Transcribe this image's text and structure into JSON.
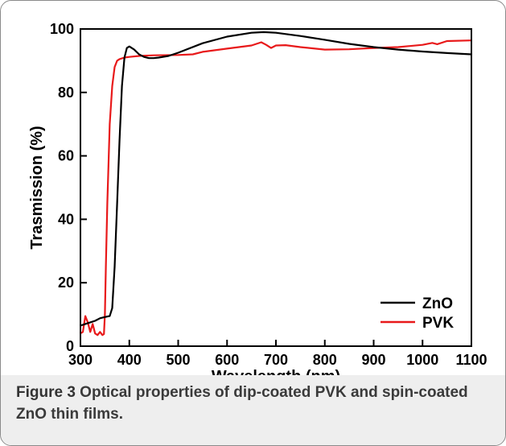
{
  "figure": {
    "label": "Figure 3",
    "caption": " Optical properties of dip-coated PVK and spin-coated ZnO thin films."
  },
  "chart_data": {
    "type": "line",
    "xlabel": "Wavelength (nm)",
    "ylabel": "Trasmission (%)",
    "xlim": [
      300,
      1100
    ],
    "ylim": [
      0,
      100
    ],
    "xticks": [
      300,
      400,
      500,
      600,
      700,
      800,
      900,
      1000,
      1100
    ],
    "yticks": [
      0,
      20,
      40,
      60,
      80,
      100
    ],
    "grid": false,
    "legend_position": "bottom-right",
    "series": [
      {
        "name": "ZnO",
        "color": "#000000",
        "x": [
          300,
          310,
          320,
          330,
          340,
          350,
          360,
          365,
          370,
          375,
          380,
          385,
          390,
          395,
          400,
          410,
          420,
          430,
          440,
          450,
          460,
          480,
          500,
          550,
          600,
          650,
          675,
          700,
          750,
          800,
          850,
          900,
          950,
          1000,
          1050,
          1100
        ],
        "y": [
          6.5,
          7.0,
          7.5,
          8.0,
          8.8,
          9.2,
          9.5,
          12,
          25,
          45,
          65,
          82,
          91,
          94,
          94.5,
          93.5,
          92,
          91.2,
          90.8,
          90.8,
          91,
          91.5,
          92.5,
          95.5,
          97.6,
          98.8,
          99.0,
          98.8,
          97.8,
          96.6,
          95.3,
          94.3,
          93.5,
          92.9,
          92.4,
          92.0
        ]
      },
      {
        "name": "PVK",
        "color": "#e8191a",
        "x": [
          300,
          305,
          310,
          315,
          320,
          325,
          330,
          335,
          340,
          345,
          348,
          350,
          352,
          355,
          358,
          360,
          365,
          370,
          375,
          380,
          390,
          400,
          420,
          450,
          500,
          530,
          550,
          600,
          650,
          670,
          680,
          690,
          700,
          720,
          750,
          800,
          850,
          900,
          950,
          1000,
          1020,
          1030,
          1050,
          1100
        ],
        "y": [
          4,
          4.5,
          9.5,
          7.5,
          4.5,
          7.0,
          4.0,
          3.5,
          4.5,
          3.5,
          3.8,
          10,
          25,
          45,
          60,
          70,
          82,
          88,
          90,
          90.5,
          91,
          91.2,
          91.5,
          91.7,
          91.8,
          92.0,
          92.8,
          93.8,
          94.8,
          95.8,
          95.0,
          94.0,
          94.8,
          94.9,
          94.3,
          93.5,
          93.6,
          94.0,
          94.3,
          95.0,
          95.6,
          95.2,
          96.2,
          96.4
        ]
      }
    ]
  }
}
